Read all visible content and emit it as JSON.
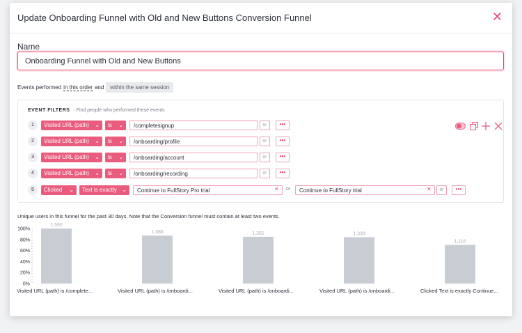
{
  "modal": {
    "title": "Update Onboarding Funnel with Old and New Buttons Conversion Funnel",
    "close_symbol": "✕"
  },
  "name": {
    "label": "Name",
    "value": "Onboarding Funnel with Old and New Buttons"
  },
  "events": {
    "prefix": "Events performed",
    "order_link": "in this order",
    "connector": "and",
    "session_chip": "within the same session"
  },
  "filters": {
    "title": "EVENT FILTERS",
    "hint": "Find people who performed these events",
    "rows": [
      {
        "num": "1",
        "event": "Visited URL (path)",
        "op": "is",
        "value": "/completesignup",
        "or": "or",
        "more": "•••"
      },
      {
        "num": "2",
        "event": "Visited URL (path)",
        "op": "is",
        "value": "/onboarding/profile",
        "or": "or",
        "more": "•••"
      },
      {
        "num": "3",
        "event": "Visited URL (path)",
        "op": "is",
        "value": "/onboarding/account",
        "or": "or",
        "more": "•••"
      },
      {
        "num": "4",
        "event": "Visited URL (path)",
        "op": "is",
        "value": "/onboarding/recording",
        "or": "or",
        "more": "•••"
      }
    ],
    "row5": {
      "num": "5",
      "event": "Clicked",
      "op": "Text is exactly",
      "value1": "Continue to FullStory Pro trial",
      "or_text": "or",
      "value2": "Continue to FullStory trial",
      "or": "or",
      "more": "•••"
    },
    "clear_symbol": "✕"
  },
  "chart_note": "Unique users in this funnel for the past 30 days. Note that the Conversion funnel must contain at least two events.",
  "colors": {
    "accent": "#e8466d",
    "pill": "#ea5c7e",
    "bar": "#c8cdd4"
  },
  "chart_data": {
    "type": "bar",
    "categories": [
      "Visited URL (path) is /complete...",
      "Visited URL (path) is /onboardi...",
      "Visited URL (path) is /onboardi...",
      "Visited URL (path) is /onboardi...",
      "Clicked Text is exactly Continue..."
    ],
    "values": [
      1590,
      1386,
      1351,
      1339,
      1116
    ],
    "value_labels": [
      "1,590",
      "1,386",
      "1,351",
      "1,339",
      "1,116"
    ],
    "yticks": [
      "100%",
      "80%",
      "60%",
      "40%",
      "20%",
      "0%"
    ],
    "ylim": [
      0,
      100
    ],
    "grid": false
  }
}
